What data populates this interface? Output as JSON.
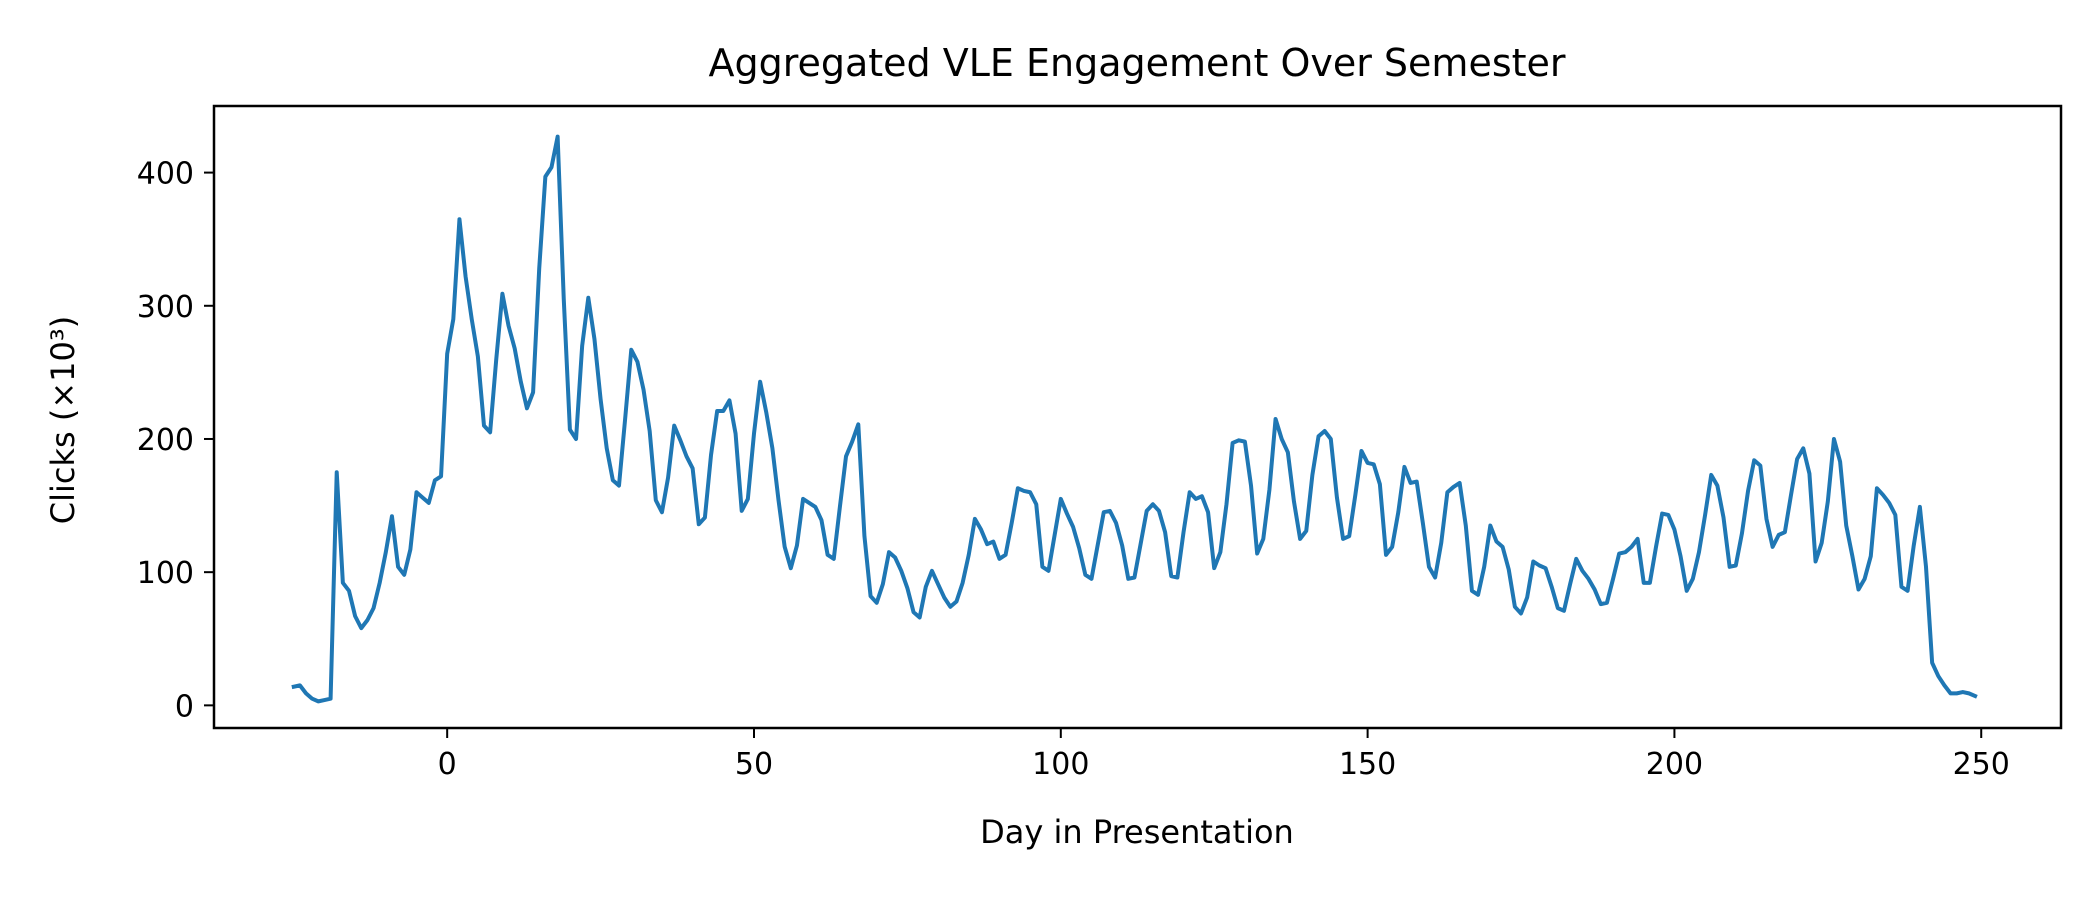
{
  "chart_data": {
    "type": "line",
    "title": "Aggregated VLE Engagement Over Semester",
    "xlabel": "Day in Presentation",
    "ylabel": "Clicks (×10³)",
    "xlim": [
      -38,
      263
    ],
    "ylim": [
      -17,
      450
    ],
    "x_ticks": [
      0,
      50,
      100,
      150,
      200,
      250
    ],
    "y_ticks": [
      0,
      100,
      200,
      300,
      400
    ],
    "grid": false,
    "legend": "none",
    "color": "#1f77b4",
    "series": [
      {
        "x": [
          -25,
          -24,
          -23,
          -22,
          -21,
          -20,
          -19,
          -18,
          -17,
          -16,
          -15,
          -14,
          -13,
          -12,
          -11,
          -10,
          -9,
          -8,
          -7,
          -6,
          -5,
          -4,
          -3,
          -2,
          -1,
          0,
          1,
          2,
          3,
          4,
          5,
          6,
          7,
          8,
          9,
          10,
          11,
          12,
          13,
          14,
          15,
          16,
          17,
          18,
          19,
          20,
          21,
          22,
          23,
          24,
          25,
          26,
          27,
          28,
          29,
          30,
          31,
          32,
          33,
          34,
          35,
          36,
          37,
          38,
          39,
          40,
          41,
          42,
          43,
          44,
          45,
          46,
          47,
          48,
          49,
          50,
          51,
          52,
          53,
          54,
          55,
          56,
          57,
          58,
          59,
          60,
          61,
          62,
          63,
          64,
          65,
          66,
          67,
          68,
          69,
          70,
          71,
          72,
          73,
          74,
          75,
          76,
          77,
          78,
          79,
          80,
          81,
          82,
          83,
          84,
          85,
          86,
          87,
          88,
          89,
          90,
          91,
          92,
          93,
          94,
          95,
          96,
          97,
          98,
          99,
          100,
          101,
          102,
          103,
          104,
          105,
          106,
          107,
          108,
          109,
          110,
          111,
          112,
          113,
          114,
          115,
          116,
          117,
          118,
          119,
          120,
          121,
          122,
          123,
          124,
          125,
          126,
          127,
          128,
          129,
          130,
          131,
          132,
          133,
          134,
          135,
          136,
          137,
          138,
          139,
          140,
          141,
          142,
          143,
          144,
          145,
          146,
          147,
          148,
          149,
          150,
          151,
          152,
          153,
          154,
          155,
          156,
          157,
          158,
          159,
          160,
          161,
          162,
          163,
          164,
          165,
          166,
          167,
          168,
          169,
          170,
          171,
          172,
          173,
          174,
          175,
          176,
          177,
          178,
          179,
          180,
          181,
          182,
          183,
          184,
          185,
          186,
          187,
          188,
          189,
          190,
          191,
          192,
          193,
          194,
          195,
          196,
          197,
          198,
          199,
          200,
          201,
          202,
          203,
          204,
          205,
          206,
          207,
          208,
          209,
          210,
          211,
          212,
          213,
          214,
          215,
          216,
          217,
          218,
          219,
          220,
          221,
          222,
          223,
          224,
          225,
          226,
          227,
          228,
          229,
          230,
          231,
          232,
          233,
          234,
          235,
          236,
          237,
          238,
          239,
          240,
          241,
          242,
          243,
          244,
          245,
          246,
          247,
          248,
          249
        ],
        "y": [
          14,
          15,
          9,
          5,
          3,
          4,
          5,
          175,
          92,
          86,
          67,
          58,
          64,
          73,
          92,
          115,
          142,
          104,
          98,
          117,
          160,
          156,
          152,
          169,
          172,
          264,
          290,
          365,
          322,
          290,
          262,
          210,
          205,
          260,
          309,
          285,
          268,
          243,
          223,
          235,
          328,
          397,
          404,
          427,
          305,
          207,
          200,
          270,
          306,
          275,
          230,
          193,
          169,
          165,
          215,
          267,
          258,
          237,
          206,
          154,
          145,
          171,
          210,
          199,
          187,
          178,
          136,
          141,
          188,
          221,
          221,
          229,
          204,
          146,
          155,
          204,
          243,
          220,
          193,
          154,
          119,
          103,
          120,
          155,
          152,
          149,
          139,
          113,
          110,
          149,
          187,
          198,
          211,
          127,
          82,
          77,
          91,
          115,
          111,
          101,
          88,
          70,
          66,
          89,
          101,
          91,
          81,
          74,
          78,
          92,
          113,
          140,
          132,
          121,
          123,
          110,
          113,
          137,
          163,
          161,
          160,
          151,
          104,
          101,
          128,
          155,
          144,
          134,
          118,
          98,
          95,
          120,
          145,
          146,
          137,
          120,
          95,
          96,
          121,
          146,
          151,
          146,
          130,
          97,
          96,
          130,
          160,
          155,
          157,
          145,
          103,
          115,
          151,
          197,
          199,
          198,
          165,
          114,
          125,
          162,
          215,
          200,
          190,
          153,
          125,
          131,
          173,
          202,
          206,
          200,
          156,
          125,
          127,
          158,
          191,
          182,
          181,
          166,
          113,
          119,
          145,
          179,
          167,
          168,
          137,
          104,
          96,
          122,
          160,
          164,
          167,
          135,
          86,
          83,
          104,
          135,
          123,
          119,
          102,
          74,
          69,
          81,
          108,
          105,
          103,
          89,
          73,
          71,
          91,
          110,
          101,
          95,
          87,
          76,
          77,
          95,
          114,
          115,
          119,
          125,
          92,
          92,
          119,
          144,
          143,
          132,
          112,
          86,
          95,
          115,
          143,
          173,
          165,
          141,
          104,
          105,
          129,
          161,
          184,
          180,
          140,
          119,
          128,
          130,
          158,
          185,
          193,
          174,
          108,
          122,
          153,
          200,
          183,
          135,
          112,
          87,
          95,
          112,
          163,
          158,
          152,
          143,
          89,
          86,
          120,
          149,
          104,
          32,
          22,
          15,
          9,
          9,
          10,
          9,
          7
        ]
      }
    ]
  }
}
